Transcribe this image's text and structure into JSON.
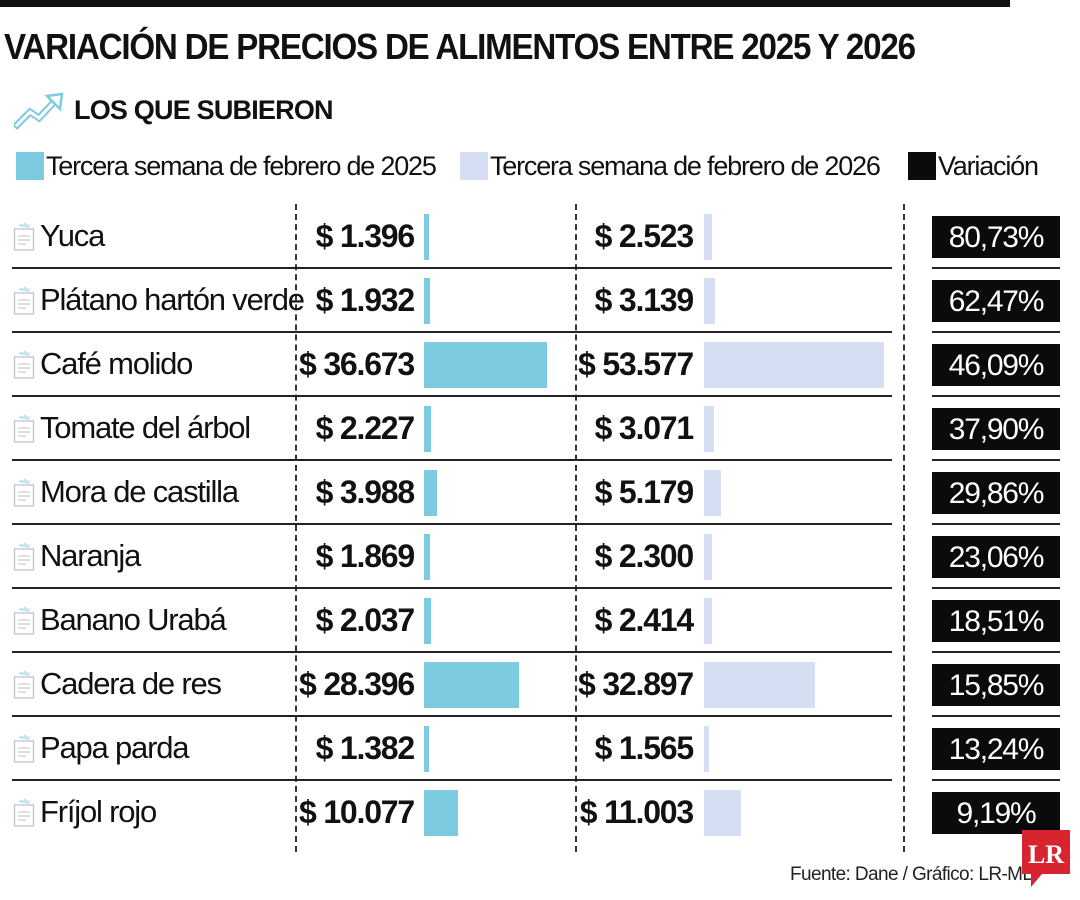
{
  "title": "VARIACIÓN DE PRECIOS DE ALIMENTOS ENTRE 2025 Y 2026",
  "subtitle": "LOS QUE SUBIERON",
  "colors": {
    "bar_2025": "#7dcbe0",
    "bar_2026": "#d5def2",
    "variation_box": "#0b0b0b",
    "brand": "#d7242f"
  },
  "icons": {
    "trend": "trend-up-icon",
    "row": "grocery-bag-icon",
    "brand": "lr-logo"
  },
  "chart_data": {
    "type": "bar",
    "title": "VARIACIÓN DE PRECIOS DE ALIMENTOS ENTRE 2025 Y 2026",
    "subtitle": "LOS QUE SUBIERON",
    "orientation": "horizontal",
    "unit": "$",
    "categories": [
      "Yuca",
      "Plátano hartón verde",
      "Café molido",
      "Tomate del árbol",
      "Mora de castilla",
      "Naranja",
      "Banano Urabá",
      "Cadera de res",
      "Papa parda",
      "Fríjol rojo"
    ],
    "series": [
      {
        "name": "Tercera semana de febrero de 2025",
        "values": [
          1396,
          1932,
          36673,
          2227,
          3988,
          1869,
          2037,
          28396,
          1382,
          10077
        ],
        "labels": [
          "$ 1.396",
          "$ 1.932",
          "$ 36.673",
          "$ 2.227",
          "$ 3.988",
          "$ 1.869",
          "$ 2.037",
          "$ 28.396",
          "$ 1.382",
          "$ 10.077"
        ]
      },
      {
        "name": "Tercera semana de febrero de 2026",
        "values": [
          2523,
          3139,
          53577,
          3071,
          5179,
          2300,
          2414,
          32897,
          1565,
          11003
        ],
        "labels": [
          "$ 2.523",
          "$ 3.139",
          "$ 53.577",
          "$ 3.071",
          "$ 5.179",
          "$ 2.300",
          "$ 2.414",
          "$ 32.897",
          "$ 1.565",
          "$ 11.003"
        ]
      }
    ],
    "variation": {
      "name": "Variación",
      "labels": [
        "80,73%",
        "62,47%",
        "46,09%",
        "37,90%",
        "29,86%",
        "23,06%",
        "18,51%",
        "15,85%",
        "13,24%",
        "9,19%"
      ]
    },
    "legend": [
      "Tercera semana de febrero de 2025",
      "Tercera semana de febrero de 2026",
      "Variación"
    ],
    "xlim": [
      0,
      53577
    ]
  },
  "footer": {
    "source": "Fuente: Dane / Gráfico: LR-MB"
  },
  "brand": {
    "logo_text": "LR"
  }
}
